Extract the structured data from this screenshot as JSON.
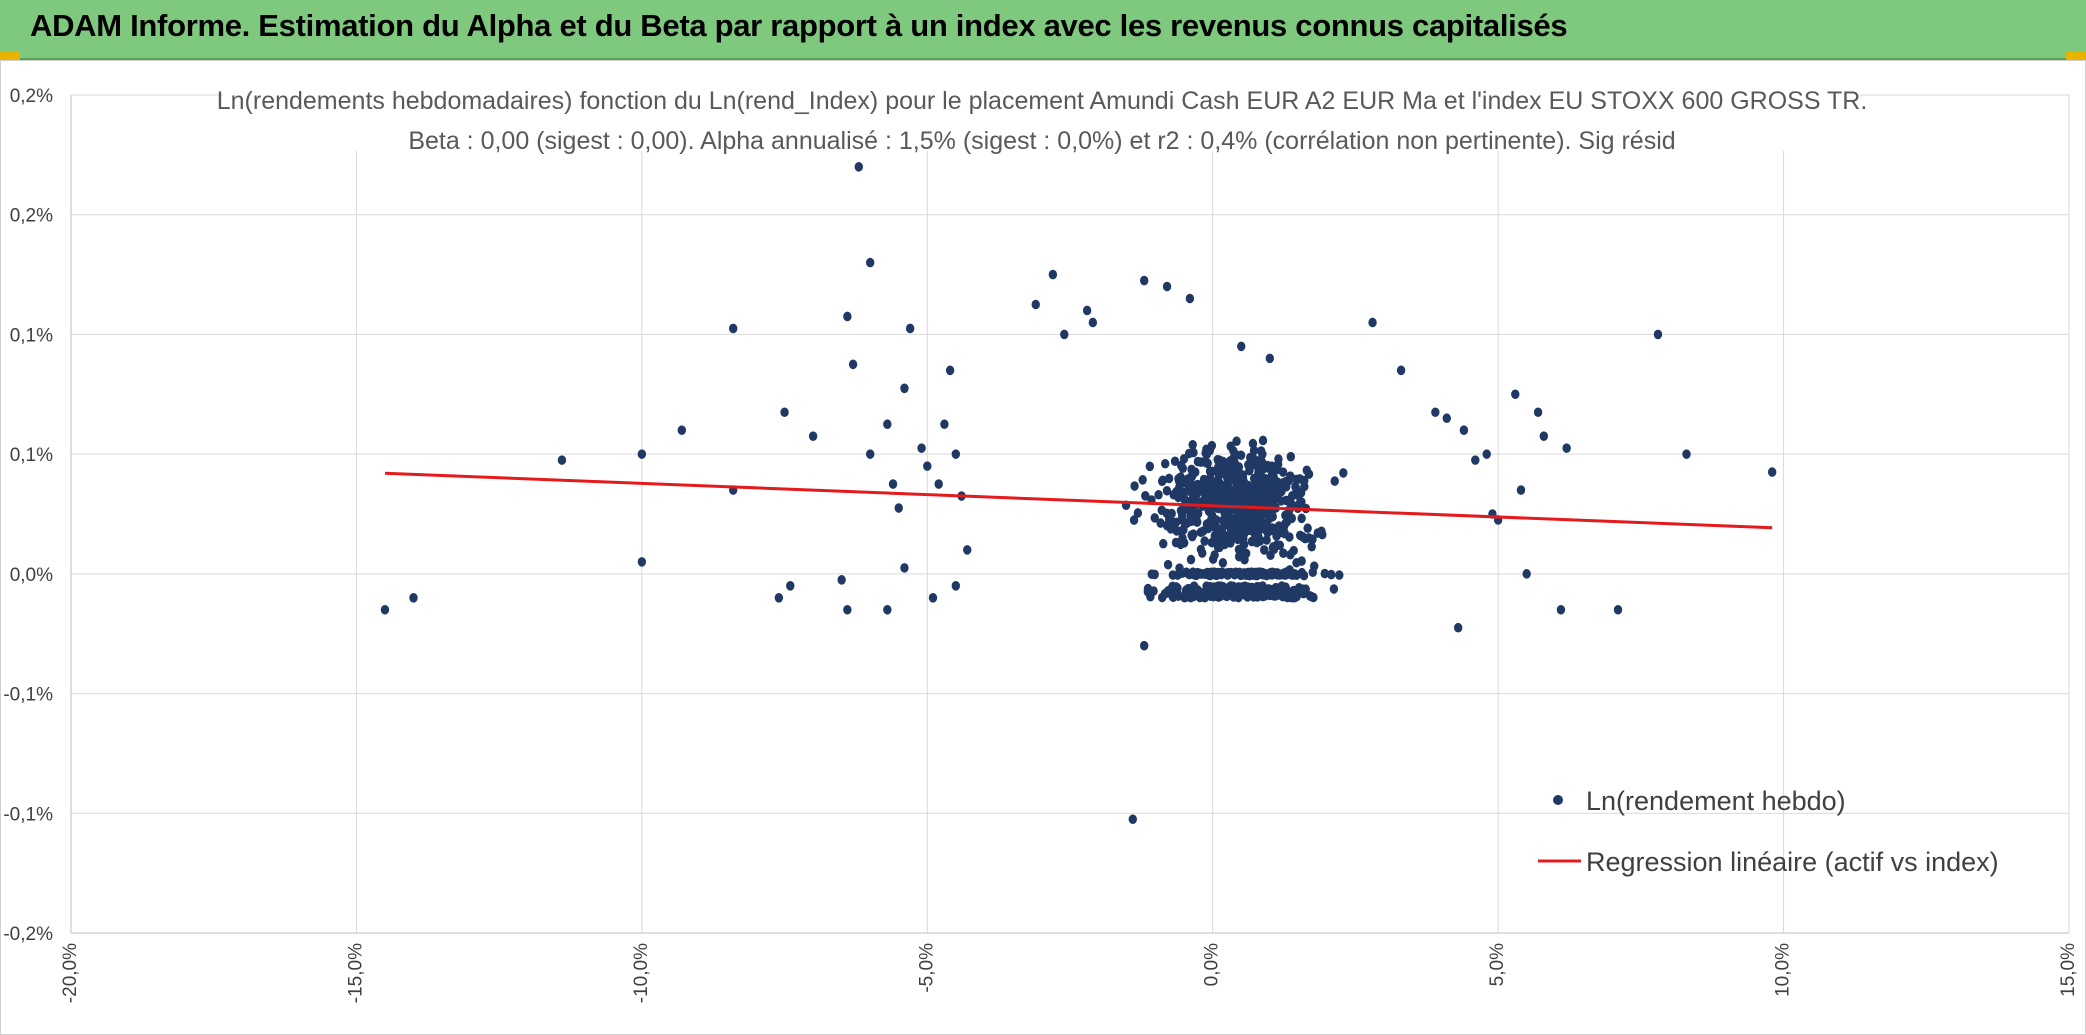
{
  "header": {
    "title": "ADAM Informe. Estimation du Alpha et du Beta par rapport à un index avec les revenus connus capitalisés"
  },
  "colors": {
    "banner": "#7fc97f",
    "points": "#203864",
    "regression": "#e41a1c",
    "grid": "#d9d9d9"
  },
  "chart_data": {
    "type": "scatter",
    "title": "Ln(rendements hebdomadaires) fonction du Ln(rend_Index) pour le placement Amundi Cash EUR A2 EUR Ma et l'index EU STOXX 600 GROSS TR.",
    "subtitle": "Beta : 0,00 (sigest : 0,00). Alpha annualisé : 1,5% (sigest : 0,0%) et r2 : 0,4% (corrélation non pertinente). Sig résid",
    "xlabel": "",
    "ylabel": "",
    "xlim": [
      -0.2,
      0.15
    ],
    "ylim": [
      -0.0006,
      0.0008
    ],
    "x_tick_labels": [
      "-20,0%",
      "-15,0%",
      "-10,0%",
      "-5,0%",
      "0,0%",
      "5,0%",
      "10,0%",
      "15,0%"
    ],
    "y_tick_labels": [
      "-0,2%",
      "-0,1%",
      "-0,1%",
      "0,0%",
      "0,1%",
      "0,1%",
      "0,2%",
      "0,2%"
    ],
    "grid": true,
    "legend_position": "bottom-right",
    "series": [
      {
        "name": "Ln(rendement hebdo)",
        "kind": "scatter",
        "points": [
          [
            -0.145,
            -6e-05
          ],
          [
            -0.14,
            -4e-05
          ],
          [
            -0.114,
            0.00019
          ],
          [
            -0.1,
            0.0002
          ],
          [
            -0.1,
            2e-05
          ],
          [
            -0.093,
            0.00024
          ],
          [
            -0.084,
            0.00041
          ],
          [
            -0.084,
            0.00014
          ],
          [
            -0.075,
            0.00027
          ],
          [
            -0.074,
            -2e-05
          ],
          [
            -0.07,
            0.00023
          ],
          [
            -0.064,
            0.00043
          ],
          [
            -0.063,
            0.00035
          ],
          [
            -0.062,
            0.00068
          ],
          [
            -0.06,
            0.00052
          ],
          [
            -0.06,
            0.0002
          ],
          [
            -0.057,
            0.00025
          ],
          [
            -0.056,
            0.00015
          ],
          [
            -0.055,
            0.00011
          ],
          [
            -0.054,
            0.00031
          ],
          [
            -0.054,
            1e-05
          ],
          [
            -0.053,
            0.00041
          ],
          [
            -0.051,
            0.00021
          ],
          [
            -0.05,
            0.00018
          ],
          [
            -0.048,
            0.00015
          ],
          [
            -0.047,
            0.00025
          ],
          [
            -0.046,
            0.00034
          ],
          [
            -0.045,
            0.0002
          ],
          [
            -0.045,
            -2e-05
          ],
          [
            -0.044,
            0.00013
          ],
          [
            -0.043,
            4e-05
          ],
          [
            -0.065,
            -1e-05
          ],
          [
            -0.064,
            -6e-05
          ],
          [
            -0.057,
            -6e-05
          ],
          [
            -0.076,
            -4e-05
          ],
          [
            -0.049,
            -4e-05
          ],
          [
            -0.031,
            0.00045
          ],
          [
            -0.028,
            0.0005
          ],
          [
            -0.026,
            0.0004
          ],
          [
            -0.022,
            0.00044
          ],
          [
            -0.021,
            0.00042
          ],
          [
            -0.012,
            0.00049
          ],
          [
            -0.008,
            0.00048
          ],
          [
            -0.004,
            0.00046
          ],
          [
            0.005,
            0.00038
          ],
          [
            0.01,
            0.00036
          ],
          [
            0.028,
            0.00042
          ],
          [
            0.033,
            0.00034
          ],
          [
            0.039,
            0.00027
          ],
          [
            0.041,
            0.00026
          ],
          [
            0.044,
            0.00024
          ],
          [
            0.046,
            0.00019
          ],
          [
            0.048,
            0.0002
          ],
          [
            0.049,
            0.0001
          ],
          [
            0.05,
            9e-05
          ],
          [
            0.053,
            0.0003
          ],
          [
            0.054,
            0.00014
          ],
          [
            0.055,
            0.0
          ],
          [
            0.057,
            0.00027
          ],
          [
            0.058,
            0.00023
          ],
          [
            0.061,
            -6e-05
          ],
          [
            0.062,
            0.00021
          ],
          [
            0.071,
            -6e-05
          ],
          [
            0.078,
            0.0004
          ],
          [
            0.083,
            0.0002
          ],
          [
            0.098,
            0.00017
          ],
          [
            -0.014,
            -0.00041
          ],
          [
            -0.012,
            -0.00012
          ],
          [
            0.043,
            -9e-05
          ]
        ]
      },
      {
        "name": "Regression linéaire (actif vs index)",
        "kind": "line",
        "points": [
          [
            -0.145,
            0.000168
          ],
          [
            0.098,
            7.7e-05
          ]
        ]
      }
    ]
  }
}
